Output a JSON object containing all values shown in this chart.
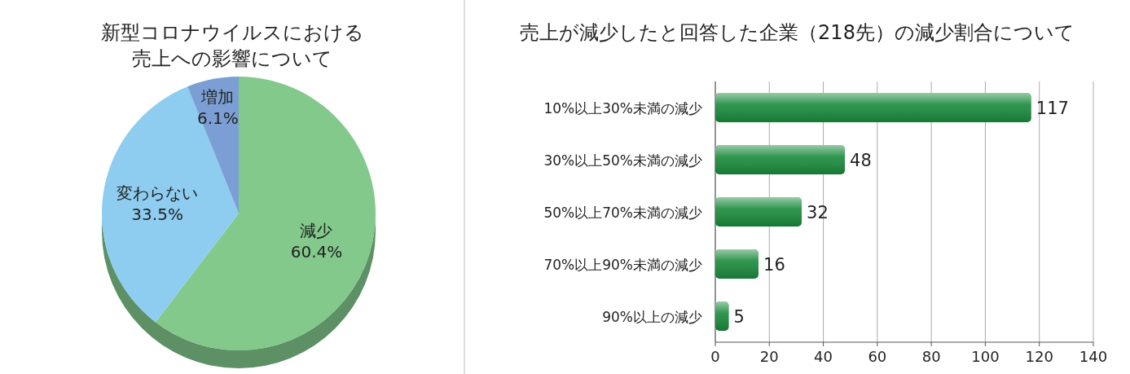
{
  "chart_data": [
    {
      "type": "pie",
      "title": "新型コロナウイルスにおける売上への影響について",
      "categories": [
        "減少",
        "変わらない",
        "増加"
      ],
      "values": [
        60.4,
        33.5,
        6.1
      ],
      "colors": [
        "#82c98b",
        "#8ecdf0",
        "#7b9fd4"
      ],
      "value_labels": [
        "60.4%",
        "33.5%",
        "6.1%"
      ],
      "legend": false
    },
    {
      "type": "bar",
      "orientation": "horizontal",
      "title": "売上が減少したと回答した企業（218先）の減少割合について",
      "categories": [
        "10%以上30%未満の減少",
        "30%以上50%未満の減少",
        "50%以上70%未満の減少",
        "70%以上90%未満の減少",
        "90%以上の減少"
      ],
      "values": [
        117,
        48,
        32,
        16,
        5
      ],
      "color": "#1a8a3c",
      "xlim": [
        0,
        140
      ],
      "xticks": [
        0,
        20,
        40,
        60,
        80,
        100,
        120,
        140
      ],
      "grid": "x",
      "data_labels": true,
      "legend": false
    }
  ]
}
